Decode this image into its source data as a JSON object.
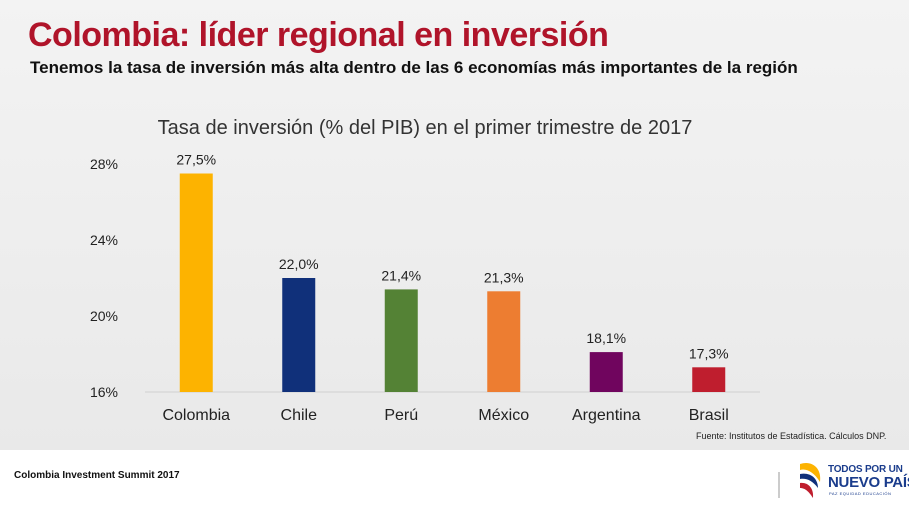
{
  "slide": {
    "title": "Colombia: líder regional en inversión",
    "subtitle": "Tenemos la tasa de inversión más alta dentro de las 6 economías más importantes de la región",
    "source": "Fuente: Institutos de Estadística. Cálculos DNP.",
    "footer": "Colombia Investment Summit 2017"
  },
  "logo": {
    "line1": "TODOS POR UN",
    "line2": "NUEVO PAÍS",
    "line3": "PAZ  EQUIDAD  EDUCACIÓN"
  },
  "chart_data": {
    "type": "bar",
    "title": "Tasa de inversión (% del PIB) en el primer trimestre de 2017",
    "categories": [
      "Colombia",
      "Chile",
      "Perú",
      "México",
      "Argentina",
      "Brasil"
    ],
    "values": [
      27.5,
      22.0,
      21.4,
      21.3,
      18.1,
      17.3
    ],
    "value_labels": [
      "27,5%",
      "22,0%",
      "21,4%",
      "21,3%",
      "18,1%",
      "17,3%"
    ],
    "colors": [
      "#fdb300",
      "#10307a",
      "#548235",
      "#ed7d31",
      "#70055e",
      "#bf1e2e"
    ],
    "yticks": [
      16,
      20,
      24,
      28
    ],
    "ytick_labels": [
      "16%",
      "20%",
      "24%",
      "28%"
    ],
    "ylim": [
      16,
      28
    ],
    "xlabel": "",
    "ylabel": "",
    "grid": false
  }
}
